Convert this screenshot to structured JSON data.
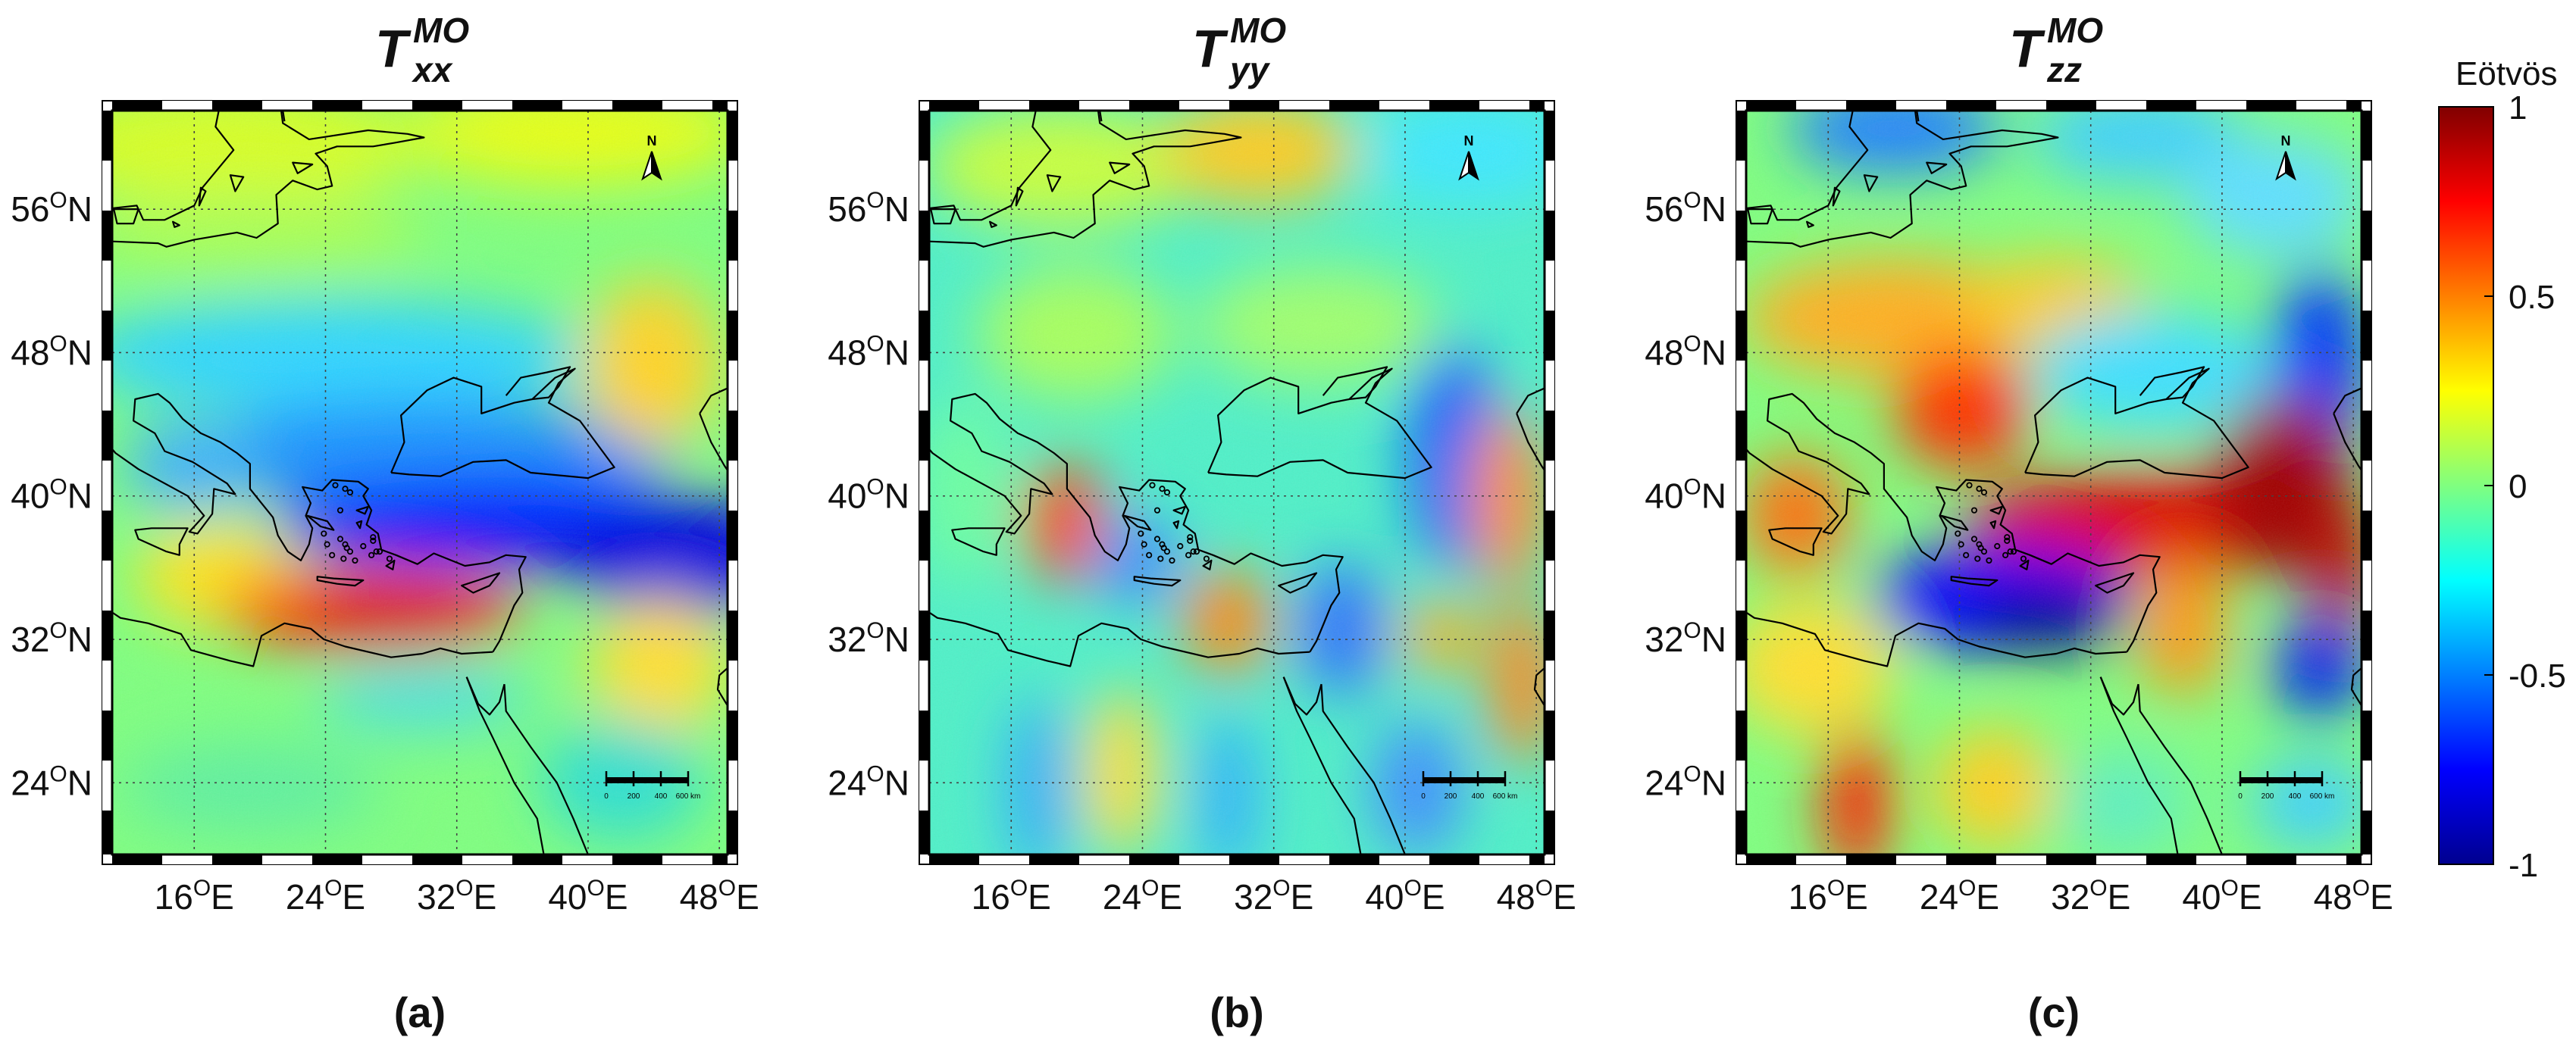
{
  "figure": {
    "panels": [
      {
        "id": "a",
        "title_base": "T",
        "title_super": "MO",
        "title_sub": "xx",
        "label": "(a)"
      },
      {
        "id": "b",
        "title_base": "T",
        "title_super": "MO",
        "title_sub": "yy",
        "label": "(b)"
      },
      {
        "id": "c",
        "title_base": "T",
        "title_super": "MO",
        "title_sub": "zz",
        "label": "(c)"
      }
    ],
    "lat_ticks": [
      {
        "value": 56,
        "num": "56",
        "deg": "O",
        "hemi": "N"
      },
      {
        "value": 48,
        "num": "48",
        "deg": "O",
        "hemi": "N"
      },
      {
        "value": 40,
        "num": "40",
        "deg": "O",
        "hemi": "N"
      },
      {
        "value": 32,
        "num": "32",
        "deg": "O",
        "hemi": "N"
      },
      {
        "value": 24,
        "num": "24",
        "deg": "O",
        "hemi": "N"
      }
    ],
    "lon_ticks": [
      {
        "value": 16,
        "num": "16",
        "deg": "O",
        "hemi": "E"
      },
      {
        "value": 24,
        "num": "24",
        "deg": "O",
        "hemi": "E"
      },
      {
        "value": 32,
        "num": "32",
        "deg": "O",
        "hemi": "E"
      },
      {
        "value": 40,
        "num": "40",
        "deg": "O",
        "hemi": "E"
      },
      {
        "value": 48,
        "num": "48",
        "deg": "O",
        "hemi": "E"
      }
    ],
    "extent": {
      "lon_min": 11,
      "lon_max": 48.5,
      "lat_min": 20,
      "lat_max": 61.5
    },
    "north_arrow_label": "N",
    "scale_bar_labels": [
      "0",
      "200",
      "400",
      "600 km"
    ],
    "colorbar": {
      "title": "Eötvös",
      "ticks": [
        "1",
        "0.5",
        "0",
        "-0.5",
        "-1"
      ],
      "tick_values": [
        1,
        0.5,
        0,
        -0.5,
        -1
      ],
      "colormap": "jet",
      "colors": [
        "#00008f",
        "#0000ff",
        "#00ffff",
        "#ffff00",
        "#ff0000",
        "#800000"
      ]
    }
  }
}
